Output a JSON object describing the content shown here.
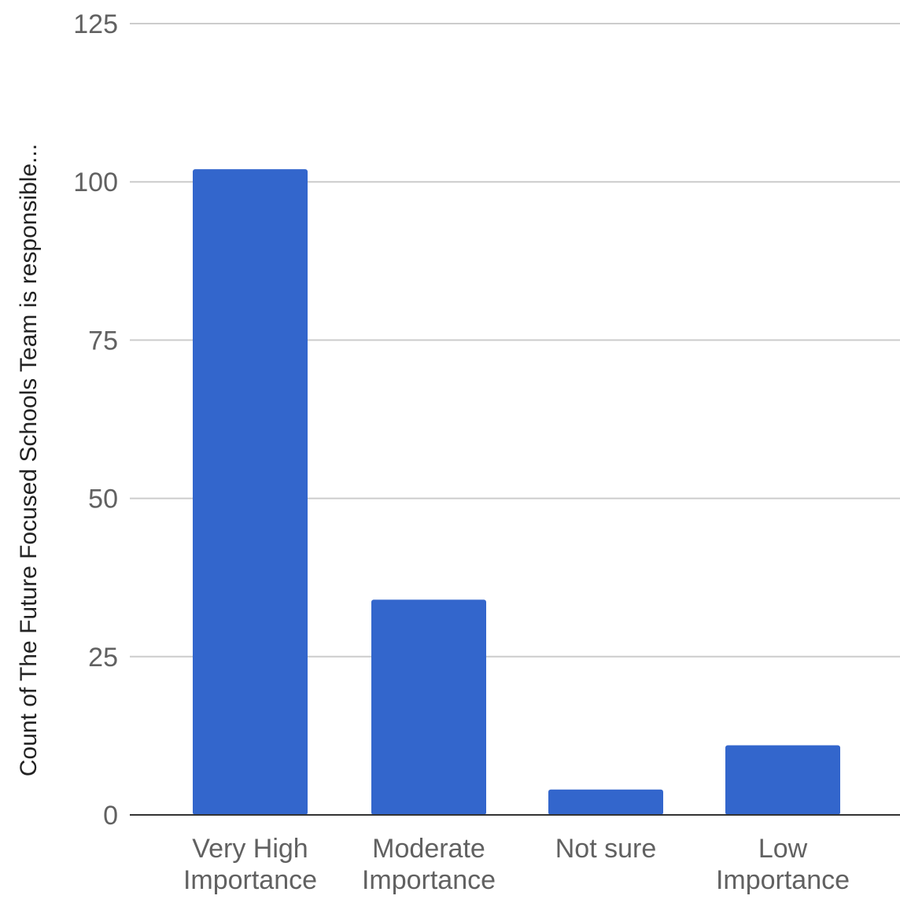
{
  "chart_data": {
    "type": "bar",
    "title": "",
    "xlabel": "",
    "ylabel": "Count of The Future Focused Schools Team is responsible...",
    "categories": [
      [
        "Very High",
        "Importance"
      ],
      [
        "Moderate",
        "Importance"
      ],
      [
        "Not sure"
      ],
      [
        "Low",
        "Importance"
      ]
    ],
    "series": [
      {
        "values": [
          102,
          34,
          4,
          11
        ],
        "color": "#3366cc"
      }
    ],
    "ylim": [
      0,
      125
    ],
    "yticks": [
      0,
      25,
      50,
      75,
      100,
      125
    ],
    "grid": true,
    "legend": "none"
  }
}
